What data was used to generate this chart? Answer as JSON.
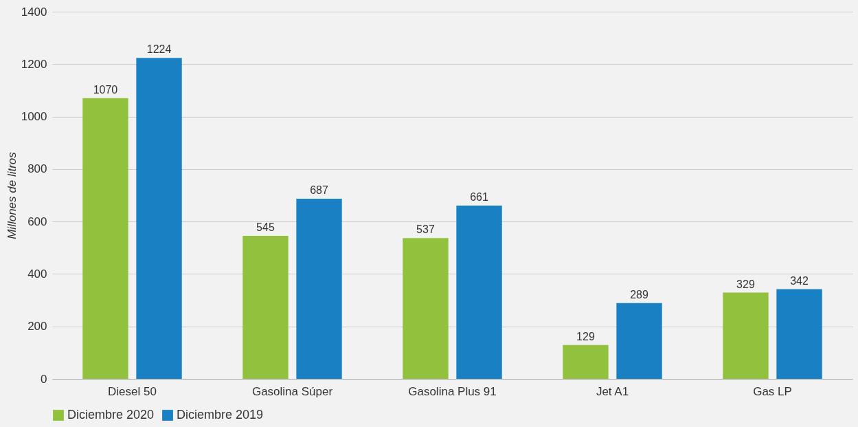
{
  "chart_data": {
    "type": "bar",
    "ylabel": "Millones de litros",
    "categories": [
      "Diesel 50",
      "Gasolina Súper",
      "Gasolina Plus 91",
      "Jet A1",
      "Gas LP"
    ],
    "series": [
      {
        "name": "Diciembre 2020",
        "color": "#92c13e",
        "values": [
          1070,
          545,
          537,
          129,
          329
        ]
      },
      {
        "name": "Diciembre 2019",
        "color": "#1a80c4",
        "values": [
          1224,
          687,
          661,
          289,
          342
        ]
      }
    ],
    "ylim": [
      0,
      1400
    ],
    "yticks": [
      0,
      200,
      400,
      600,
      800,
      1000,
      1200,
      1400
    ],
    "grid": "y",
    "legend": "bottom",
    "data_labels": true
  }
}
